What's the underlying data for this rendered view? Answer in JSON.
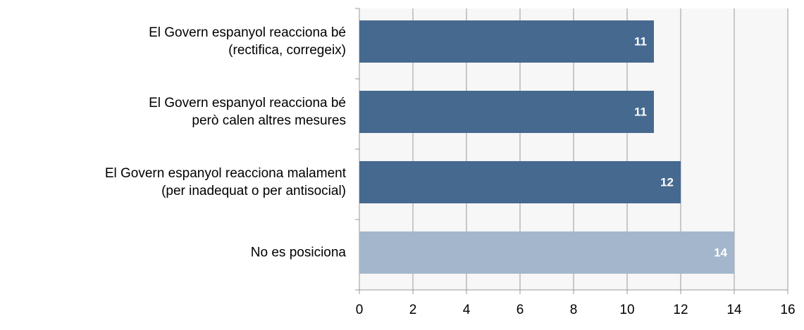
{
  "chart_data": {
    "type": "barh",
    "categories": [
      "El Govern espanyol reacciona bé\n(rectifica, corregeix)",
      "El Govern espanyol reacciona bé\nperò calen altres mesures",
      "El Govern espanyol reacciona malament\n(per inadequat o per antisocial)",
      "No es posiciona"
    ],
    "values": [
      11,
      11,
      12,
      14
    ],
    "colors": [
      "#46698f",
      "#46698f",
      "#46698f",
      "#a3b6cc"
    ],
    "xlim": [
      0,
      16
    ],
    "xticks": [
      0,
      2,
      4,
      6,
      8,
      10,
      12,
      14,
      16
    ],
    "grid": true
  }
}
